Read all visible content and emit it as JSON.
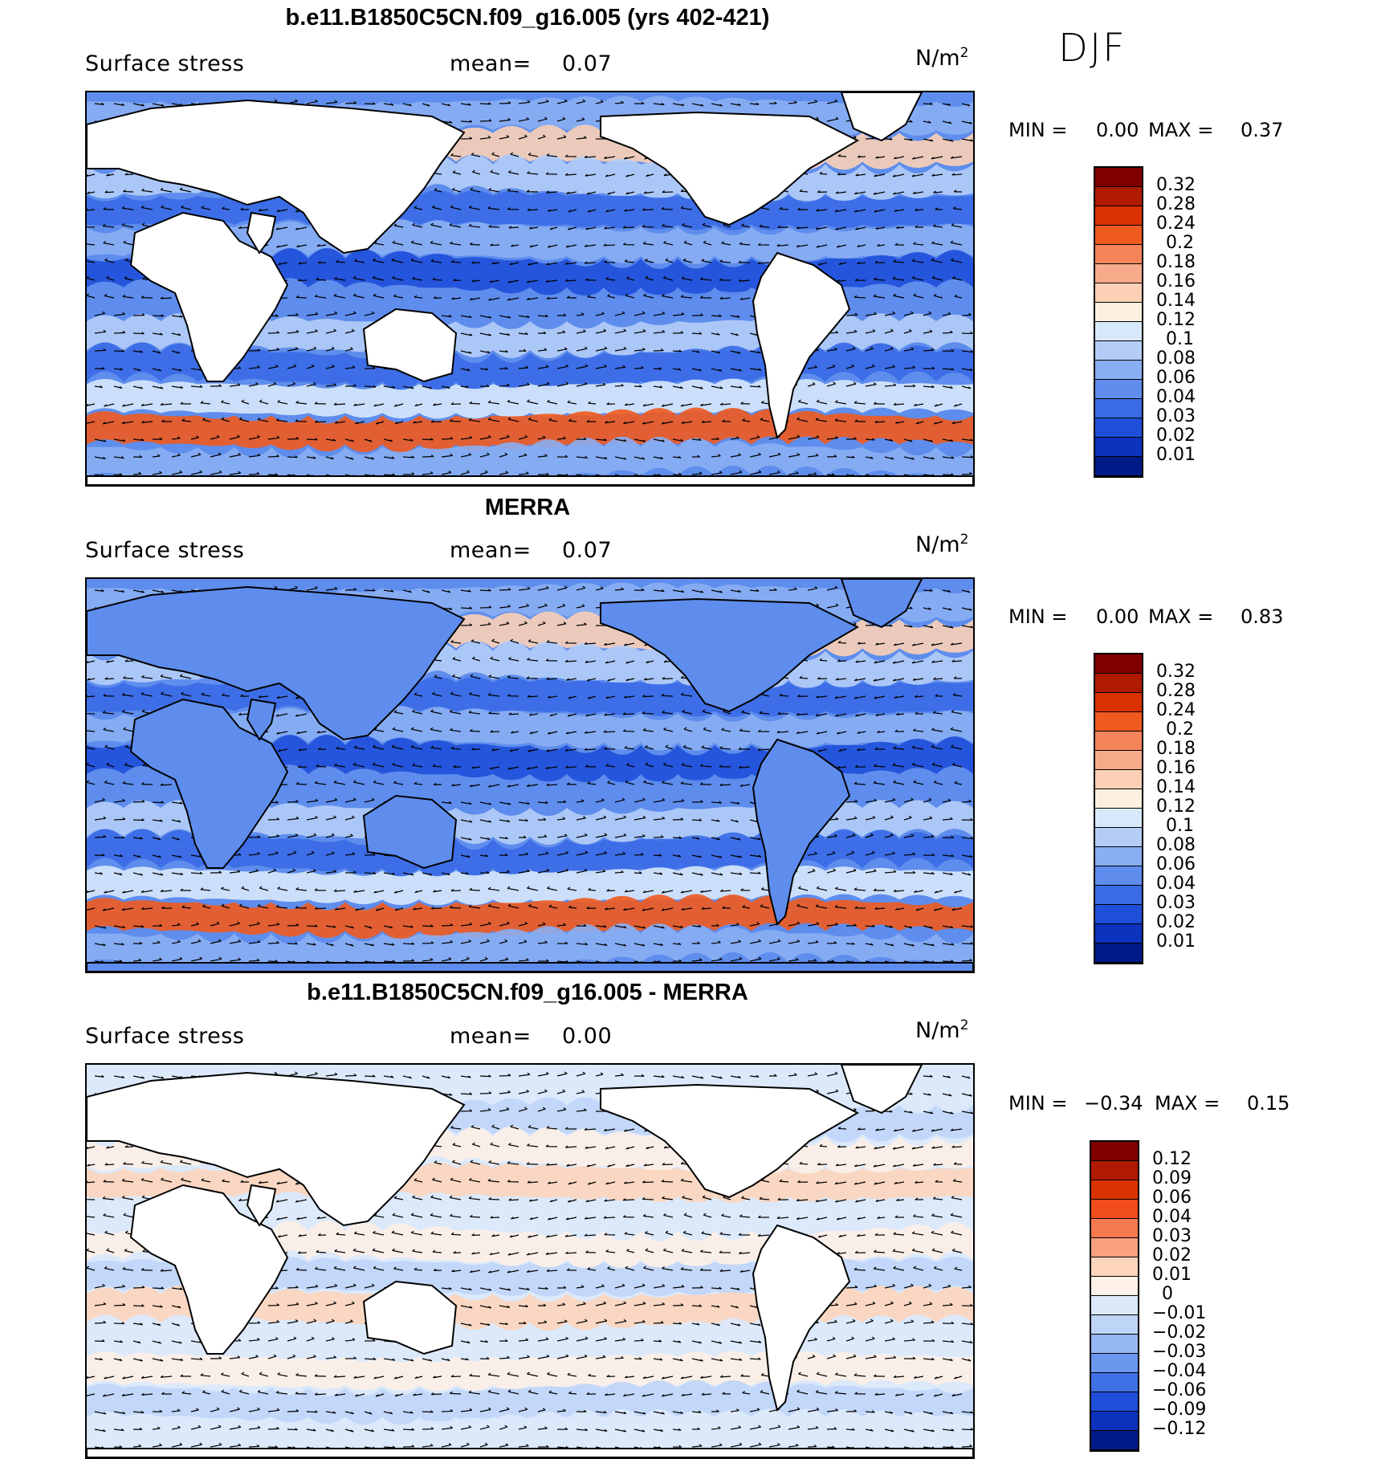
{
  "season": "DJF",
  "units_base": "N/m",
  "units_exp": "2",
  "panels": [
    {
      "title": "b.e11.B1850C5CN.f09_g16.005 (yrs 402-421)",
      "variable": "Surface stress",
      "mean_label": "mean=",
      "mean_value": "0.07",
      "min_label": "MIN =",
      "min_value": "0.00",
      "max_label": "MAX =",
      "max_value": "0.37",
      "colorbar": {
        "colors": [
          "#800000",
          "#b01a00",
          "#d93200",
          "#f05a1e",
          "#f6845a",
          "#f8ab8a",
          "#fbd0b6",
          "#fcefdf",
          "#d7e8fb",
          "#b4cdf7",
          "#89aef3",
          "#5e8ded",
          "#3a6ae6",
          "#1f4fd9",
          "#0d32bd",
          "#001a88"
        ],
        "labels": [
          "0.32",
          "0.28",
          "0.24",
          "0.2",
          "0.18",
          "0.16",
          "0.14",
          "0.12",
          "0.1",
          "0.08",
          "0.06",
          "0.04",
          "0.03",
          "0.02",
          "0.01"
        ]
      }
    },
    {
      "title": "MERRA",
      "variable": "Surface stress",
      "mean_label": "mean=",
      "mean_value": "0.07",
      "min_label": "MIN =",
      "min_value": "0.00",
      "max_label": "MAX =",
      "max_value": "0.83",
      "colorbar": {
        "colors": [
          "#800000",
          "#b01a00",
          "#d93200",
          "#f05a1e",
          "#f6845a",
          "#f8ab8a",
          "#fbd0b6",
          "#fcefdf",
          "#d7e8fb",
          "#b4cdf7",
          "#89aef3",
          "#5e8ded",
          "#3a6ae6",
          "#1f4fd9",
          "#0d32bd",
          "#001a88"
        ],
        "labels": [
          "0.32",
          "0.28",
          "0.24",
          "0.2",
          "0.18",
          "0.16",
          "0.14",
          "0.12",
          "0.1",
          "0.08",
          "0.06",
          "0.04",
          "0.03",
          "0.02",
          "0.01"
        ]
      }
    },
    {
      "title": "b.e11.B1850C5CN.f09_g16.005 - MERRA",
      "variable": "Surface stress",
      "mean_label": "mean=",
      "mean_value": "0.00",
      "min_label": "MIN =",
      "min_value": "−0.34",
      "max_label": "MAX =",
      "max_value": "0.15",
      "colorbar": {
        "colors": [
          "#800000",
          "#b01a00",
          "#d93200",
          "#f04c1c",
          "#f7794f",
          "#f9a07f",
          "#fcd5bb",
          "#fdf0e6",
          "#dbe9fb",
          "#bfd5f8",
          "#95b7f3",
          "#6b97ee",
          "#3f70e6",
          "#1f4fd9",
          "#0d32bd",
          "#001a88"
        ],
        "labels": [
          "0.12",
          "0.09",
          "0.06",
          "0.04",
          "0.03",
          "0.02",
          "0.01",
          "0",
          "−0.01",
          "−0.02",
          "−0.03",
          "−0.04",
          "−0.06",
          "−0.09",
          "−0.12"
        ]
      }
    }
  ]
}
